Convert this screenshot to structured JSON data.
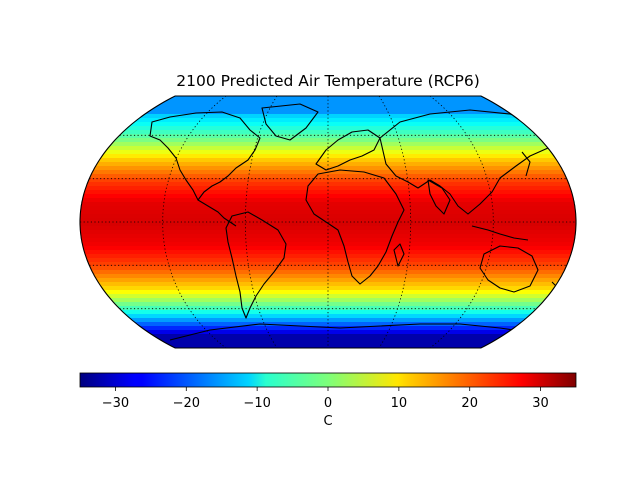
{
  "title": "2100 Predicted Air Temperature (RCP6)",
  "colorbar": {
    "label": "C",
    "min": -35,
    "max": 35,
    "ticks": [
      {
        "value": -30,
        "label": "−30"
      },
      {
        "value": -20,
        "label": "−20"
      },
      {
        "value": -10,
        "label": "−10"
      },
      {
        "value": 0,
        "label": "0"
      },
      {
        "value": 10,
        "label": "10"
      },
      {
        "value": 20,
        "label": "20"
      },
      {
        "value": 30,
        "label": "30"
      }
    ],
    "colormap": "jet"
  },
  "map": {
    "projection": "robinson",
    "graticule_style": "dotted",
    "coastlines": true,
    "lat_temperature_bands": [
      {
        "lat": 75,
        "temp": -12
      },
      {
        "lat": 60,
        "temp": -2
      },
      {
        "lat": 45,
        "temp": 12
      },
      {
        "lat": 30,
        "temp": 22
      },
      {
        "lat": 15,
        "temp": 28
      },
      {
        "lat": 0,
        "temp": 29
      },
      {
        "lat": -15,
        "temp": 27
      },
      {
        "lat": -30,
        "temp": 21
      },
      {
        "lat": -45,
        "temp": 11
      },
      {
        "lat": -60,
        "temp": -6
      },
      {
        "lat": -75,
        "temp": -28
      }
    ]
  }
}
